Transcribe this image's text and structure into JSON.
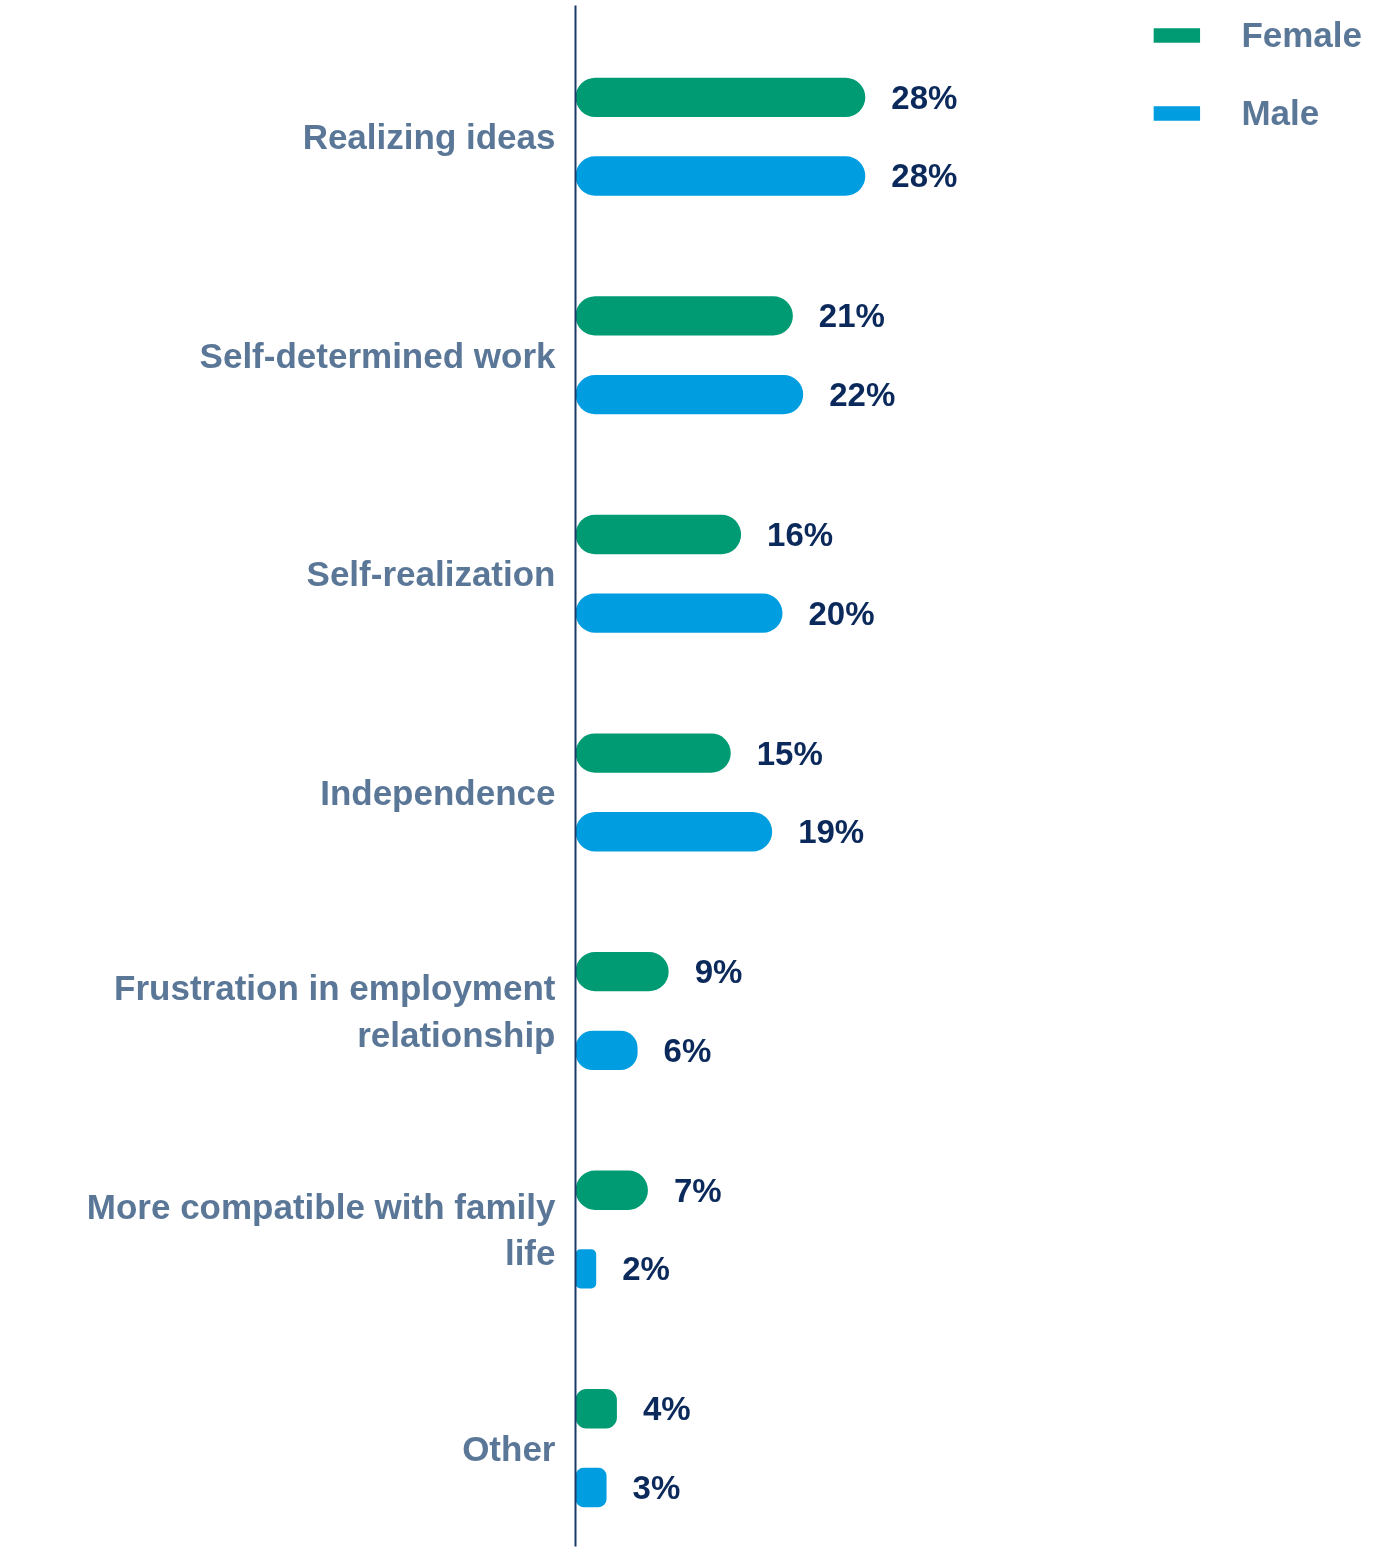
{
  "chart_data": {
    "type": "bar",
    "orientation": "horizontal",
    "categories": [
      "Realizing ideas",
      "Self-determined work",
      "Self-realization",
      "Independence",
      "Frustration in employment relationship",
      "More compatible with family life",
      "Other"
    ],
    "series": [
      {
        "name": "Female",
        "color": "#009b72",
        "values": [
          28,
          21,
          16,
          15,
          9,
          7,
          4
        ],
        "value_labels": [
          "28%",
          "21%",
          "16%",
          "15%",
          "9%",
          "7%",
          "4%"
        ]
      },
      {
        "name": "Male",
        "color": "#009ee0",
        "values": [
          28,
          22,
          20,
          19,
          6,
          2,
          3
        ],
        "value_labels": [
          "28%",
          "22%",
          "20%",
          "19%",
          "6%",
          "2%",
          "3%"
        ]
      }
    ],
    "legend": "top right",
    "grid": false
  }
}
